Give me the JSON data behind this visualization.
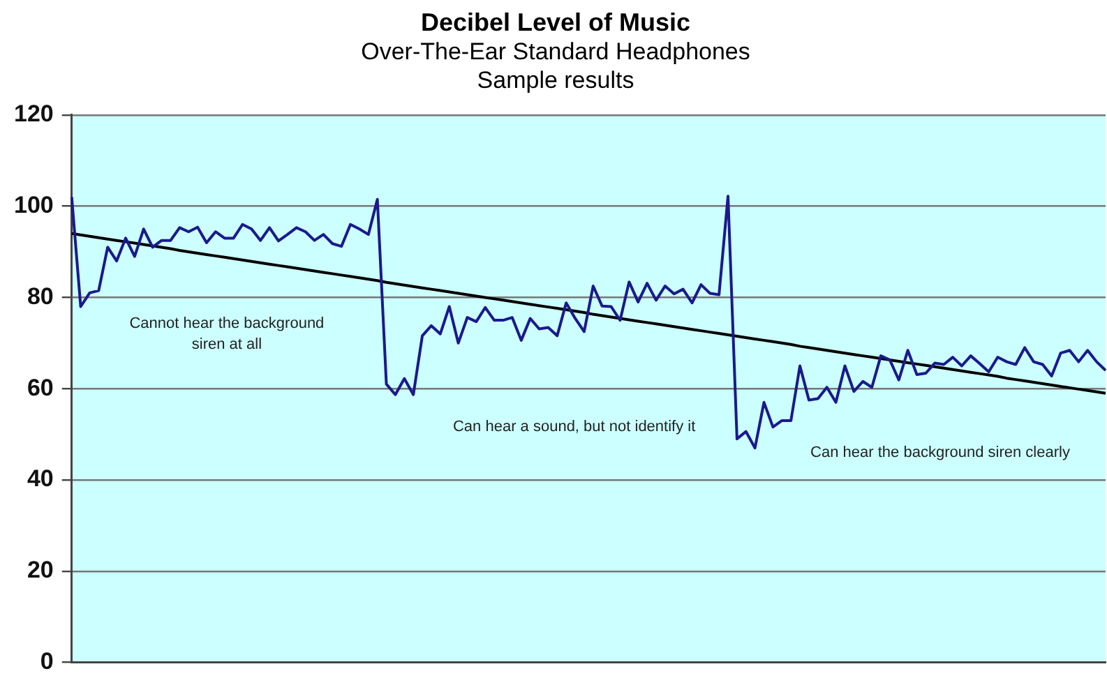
{
  "chart_data": {
    "type": "line",
    "title": "Decibel Level of Music",
    "subtitle": "Over-The-Ear Standard Headphones\nSample results",
    "categories": [
      null,
      null,
      null,
      null,
      null,
      null,
      null,
      null,
      null,
      null,
      null,
      null,
      null,
      null,
      null,
      null,
      null,
      null,
      null,
      null,
      null,
      null,
      null,
      null,
      null,
      null,
      null,
      null,
      null,
      null,
      null,
      null,
      null,
      null,
      null,
      null,
      null,
      null,
      null,
      null,
      null,
      null,
      null,
      null,
      null,
      null,
      null,
      null,
      null,
      null,
      null,
      null,
      null,
      null,
      null,
      null,
      null,
      null,
      null,
      null,
      null,
      null,
      null,
      null,
      null,
      null,
      null,
      null,
      null,
      null,
      null,
      null,
      null,
      null,
      null,
      null,
      null,
      null,
      null,
      null,
      null,
      null,
      null,
      null,
      null,
      null,
      null,
      null,
      null,
      null,
      null,
      null,
      null,
      null,
      null,
      null,
      null,
      null,
      null,
      null,
      null,
      null,
      null,
      null,
      null,
      null,
      null,
      null,
      null,
      null,
      null,
      null,
      null,
      null,
      null,
      null
    ],
    "ylim": [
      0,
      120
    ],
    "yticks": [
      0,
      20,
      40,
      60,
      80,
      100,
      120
    ],
    "grid": "y",
    "legend": false,
    "marker": "none",
    "tick_labels": "y",
    "series": [
      {
        "color": "#1a1a8c",
        "values": [
          102,
          78,
          81,
          81.5,
          91,
          88,
          93,
          89,
          95,
          91,
          92.5,
          92.5,
          95.3,
          94.4,
          95.4,
          92,
          94.4,
          93,
          93,
          96,
          95,
          92.5,
          95.3,
          92.4,
          93.8,
          95.3,
          94.4,
          92.5,
          93.8,
          91.8,
          91.2,
          96,
          95,
          93.8,
          101.5,
          61,
          58.7,
          62.2,
          58.7,
          71.6,
          73.8,
          72,
          78,
          70,
          75.6,
          74.7,
          77.8,
          75,
          75,
          75.6,
          70.6,
          75.4,
          73.1,
          73.4,
          71.6,
          78.8,
          75.4,
          72.5,
          82.5,
          78.1,
          78,
          75,
          83.4,
          79,
          83.1,
          79.4,
          82.5,
          80.8,
          81.8,
          78.8,
          82.8,
          80.9,
          80.6,
          102.2,
          49,
          50.6,
          47,
          57,
          51.6,
          53,
          53,
          65,
          57.5,
          57.8,
          60.3,
          57,
          65,
          59.4,
          61.6,
          60.3,
          67.2,
          66.3,
          61.9,
          68.4,
          63.1,
          63.4,
          65.6,
          65.3,
          66.9,
          65,
          67.2,
          65.5,
          63.7,
          66.9,
          65.9,
          65.3,
          69,
          65.9,
          65.3,
          62.8,
          67.8,
          68.4,
          65.9,
          68.4,
          65.9,
          64
        ]
      },
      {
        "color": "#000000",
        "values": [
          94.0,
          93.7,
          93.4,
          93.1,
          92.8,
          92.5,
          92.2,
          91.9,
          91.6,
          91.3,
          91.0,
          90.7,
          90.3,
          90.0,
          89.7,
          89.4,
          89.1,
          88.8,
          88.5,
          88.2,
          87.9,
          87.6,
          87.3,
          87.0,
          86.7,
          86.4,
          86.1,
          85.8,
          85.5,
          85.2,
          84.9,
          84.6,
          84.3,
          84.0,
          83.7,
          83.3,
          83.0,
          82.7,
          82.4,
          82.1,
          81.8,
          81.5,
          81.2,
          80.9,
          80.6,
          80.3,
          80.0,
          79.7,
          79.4,
          79.1,
          78.8,
          78.5,
          78.2,
          77.9,
          77.6,
          77.3,
          77.0,
          76.7,
          76.3,
          76.0,
          75.7,
          75.4,
          75.1,
          74.8,
          74.5,
          74.2,
          73.9,
          73.6,
          73.3,
          73.0,
          72.7,
          72.4,
          72.1,
          71.8,
          71.5,
          71.2,
          70.9,
          70.6,
          70.3,
          70.0,
          69.7,
          69.3,
          69.0,
          68.7,
          68.4,
          68.1,
          67.8,
          67.5,
          67.2,
          66.9,
          66.6,
          66.3,
          66.0,
          65.7,
          65.4,
          65.1,
          64.8,
          64.5,
          64.2,
          63.9,
          63.6,
          63.3,
          63.0,
          62.7,
          62.3,
          62.0,
          61.7,
          61.4,
          61.1,
          60.8,
          60.5,
          60.2,
          59.9,
          59.6,
          59.3,
          59.0
        ]
      }
    ],
    "annotations": [
      "Cannot hear the background\nsiren at all",
      "Can hear a sound, but not identify it",
      "Can hear the background siren clearly"
    ]
  }
}
